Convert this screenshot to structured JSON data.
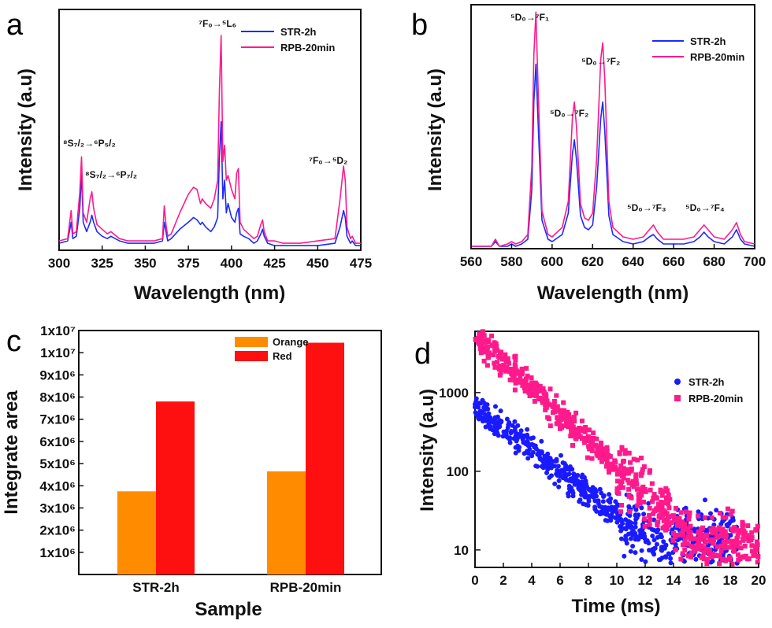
{
  "panels": [
    "a",
    "b",
    "c",
    "d"
  ],
  "chart_data": [
    {
      "panel": "a",
      "type": "line",
      "xlabel": "Wavelength (nm)",
      "ylabel": "Intensity (a.u)",
      "xlim": [
        300,
        475
      ],
      "xticks": [
        300,
        325,
        350,
        375,
        400,
        425,
        450,
        475
      ],
      "ylim": [
        0,
        1
      ],
      "series": [
        {
          "name": "STR-2h",
          "color": "#1a2bff",
          "x": [
            300,
            305,
            307,
            308,
            310,
            312,
            313,
            314,
            316,
            318,
            319,
            320,
            322,
            325,
            328,
            330,
            335,
            340,
            350,
            355,
            360,
            361,
            362,
            363,
            365,
            370,
            375,
            378,
            380,
            382,
            383,
            385,
            388,
            390,
            392,
            393,
            394,
            395,
            396,
            397,
            398,
            400,
            402,
            403,
            404,
            405,
            407,
            410,
            413,
            415,
            417,
            418,
            419,
            421,
            425,
            430,
            440,
            450,
            460,
            463,
            465,
            466,
            467,
            469,
            470,
            472,
            475
          ],
          "y": [
            0.03,
            0.04,
            0.12,
            0.05,
            0.06,
            0.18,
            0.33,
            0.12,
            0.08,
            0.12,
            0.15,
            0.12,
            0.08,
            0.06,
            0.05,
            0.06,
            0.04,
            0.03,
            0.03,
            0.03,
            0.04,
            0.12,
            0.08,
            0.04,
            0.05,
            0.09,
            0.12,
            0.14,
            0.13,
            0.11,
            0.12,
            0.1,
            0.08,
            0.1,
            0.14,
            0.4,
            0.55,
            0.22,
            0.3,
            0.16,
            0.2,
            0.14,
            0.12,
            0.16,
            0.18,
            0.07,
            0.06,
            0.05,
            0.03,
            0.04,
            0.07,
            0.09,
            0.06,
            0.03,
            0.02,
            0.02,
            0.02,
            0.02,
            0.03,
            0.1,
            0.17,
            0.14,
            0.06,
            0.03,
            0.04,
            0.02,
            0.02
          ]
        },
        {
          "name": "RPB-20min",
          "color": "#ff1a8c",
          "x": [
            300,
            305,
            307,
            308,
            310,
            312,
            313,
            314,
            316,
            318,
            319,
            320,
            322,
            325,
            328,
            330,
            335,
            340,
            350,
            355,
            360,
            361,
            362,
            363,
            365,
            370,
            375,
            378,
            380,
            382,
            383,
            385,
            388,
            390,
            392,
            393,
            394,
            395,
            396,
            397,
            398,
            400,
            402,
            403,
            404,
            405,
            407,
            410,
            413,
            415,
            417,
            418,
            419,
            421,
            425,
            430,
            440,
            450,
            460,
            463,
            465,
            466,
            467,
            469,
            470,
            472,
            475
          ],
          "y": [
            0.04,
            0.05,
            0.17,
            0.07,
            0.08,
            0.25,
            0.4,
            0.16,
            0.12,
            0.22,
            0.25,
            0.18,
            0.11,
            0.09,
            0.07,
            0.08,
            0.05,
            0.04,
            0.04,
            0.04,
            0.05,
            0.19,
            0.11,
            0.06,
            0.07,
            0.16,
            0.24,
            0.27,
            0.26,
            0.2,
            0.22,
            0.2,
            0.18,
            0.22,
            0.3,
            0.68,
            0.92,
            0.38,
            0.45,
            0.3,
            0.32,
            0.26,
            0.22,
            0.33,
            0.35,
            0.12,
            0.09,
            0.07,
            0.05,
            0.06,
            0.11,
            0.13,
            0.08,
            0.04,
            0.04,
            0.03,
            0.03,
            0.04,
            0.05,
            0.22,
            0.36,
            0.3,
            0.1,
            0.05,
            0.06,
            0.03,
            0.03
          ]
        }
      ],
      "annotations": [
        {
          "text": "⁷F₀→⁵L₆",
          "x": 394
        },
        {
          "text": "⁸S₇/₂→⁶P₅/₂",
          "x": 313
        },
        {
          "text": "⁸S₇/₂→⁶P₇/₂",
          "x": 319
        },
        {
          "text": "⁷F₀→⁵D₂",
          "x": 465
        }
      ],
      "legend": "top-right"
    },
    {
      "panel": "b",
      "type": "line",
      "xlabel": "Wavelength (nm)",
      "ylabel": "Intensity (a.u)",
      "xlim": [
        560,
        700
      ],
      "xticks": [
        560,
        580,
        600,
        620,
        640,
        660,
        680,
        700
      ],
      "ylim": [
        0,
        1
      ],
      "series": [
        {
          "name": "STR-2h",
          "color": "#1a2bff",
          "x": [
            560,
            570,
            572,
            574,
            578,
            580,
            582,
            585,
            588,
            590,
            591,
            592,
            593,
            595,
            598,
            600,
            605,
            608,
            610,
            611,
            612,
            614,
            616,
            618,
            620,
            622,
            624,
            625,
            626,
            628,
            630,
            635,
            640,
            645,
            648,
            650,
            652,
            655,
            660,
            665,
            670,
            673,
            675,
            677,
            680,
            685,
            689,
            691,
            693,
            695,
            700
          ],
          "y": [
            0.01,
            0.01,
            0.03,
            0.01,
            0.01,
            0.02,
            0.01,
            0.02,
            0.04,
            0.25,
            0.62,
            0.78,
            0.55,
            0.12,
            0.04,
            0.03,
            0.06,
            0.15,
            0.4,
            0.46,
            0.38,
            0.14,
            0.09,
            0.08,
            0.1,
            0.26,
            0.55,
            0.62,
            0.5,
            0.14,
            0.06,
            0.03,
            0.02,
            0.03,
            0.05,
            0.06,
            0.04,
            0.02,
            0.02,
            0.02,
            0.03,
            0.05,
            0.07,
            0.05,
            0.03,
            0.02,
            0.05,
            0.08,
            0.04,
            0.02,
            0.01
          ]
        },
        {
          "name": "RPB-20min",
          "color": "#ff1a8c",
          "x": [
            560,
            570,
            572,
            574,
            578,
            580,
            582,
            585,
            588,
            590,
            591,
            592,
            593,
            595,
            598,
            600,
            605,
            608,
            610,
            611,
            612,
            614,
            616,
            618,
            620,
            622,
            624,
            625,
            626,
            628,
            630,
            635,
            640,
            645,
            648,
            650,
            652,
            655,
            660,
            665,
            670,
            673,
            675,
            677,
            680,
            685,
            689,
            691,
            693,
            695,
            700
          ],
          "y": [
            0.01,
            0.01,
            0.04,
            0.01,
            0.02,
            0.03,
            0.02,
            0.03,
            0.06,
            0.35,
            0.82,
            1.0,
            0.7,
            0.16,
            0.06,
            0.05,
            0.09,
            0.2,
            0.55,
            0.62,
            0.52,
            0.19,
            0.13,
            0.12,
            0.15,
            0.38,
            0.8,
            0.87,
            0.72,
            0.2,
            0.09,
            0.05,
            0.04,
            0.05,
            0.08,
            0.1,
            0.07,
            0.04,
            0.04,
            0.04,
            0.05,
            0.08,
            0.1,
            0.08,
            0.05,
            0.04,
            0.08,
            0.11,
            0.06,
            0.03,
            0.02
          ]
        }
      ],
      "annotations": [
        {
          "text": "⁵D₀→⁷F₁",
          "x": 592
        },
        {
          "text": "⁵D₀→⁷F₂",
          "x": 610
        },
        {
          "text": "⁵D₀→⁷F₂",
          "x": 625
        },
        {
          "text": "⁵D₀→⁷F₃",
          "x": 650
        },
        {
          "text": "⁵D₀→⁷F₄",
          "x": 675
        }
      ],
      "legend": "top-right"
    },
    {
      "panel": "c",
      "type": "bar",
      "xlabel": "Sample",
      "ylabel": "Integrate area",
      "categories": [
        "STR-2h",
        "RPB-20min"
      ],
      "series": [
        {
          "name": "Orange",
          "color": "#ff8c00",
          "values": [
            3750000,
            4650000
          ]
        },
        {
          "name": "Red",
          "color": "#ff1010",
          "values": [
            7800000,
            10450000
          ]
        }
      ],
      "ylim": [
        0,
        11000000
      ],
      "yticks": [
        1000000,
        2000000,
        3000000,
        4000000,
        5000000,
        6000000,
        7000000,
        8000000,
        9000000,
        10000000,
        11000000
      ],
      "ytick_labels": [
        "1x10⁶",
        "2x10⁶",
        "3x10⁶",
        "4x10⁶",
        "5x10⁶",
        "6x10⁶",
        "7x10⁶",
        "8x10⁶",
        "9x10⁶",
        "1x10⁷",
        "1x10⁷"
      ],
      "legend": "top-center"
    },
    {
      "panel": "d",
      "type": "scatter",
      "xlabel": "Time (ms)",
      "ylabel": "Intensity (a.u)",
      "xlim": [
        0,
        20
      ],
      "xticks": [
        0,
        2,
        4,
        6,
        8,
        10,
        12,
        14,
        16,
        18,
        20
      ],
      "yscale": "log",
      "ylim": [
        6,
        6000
      ],
      "yticks": [
        10,
        100,
        1000
      ],
      "series": [
        {
          "name": "STR-2h",
          "color": "#1a1aff",
          "marker": "circle",
          "A": 650,
          "tau": 3.2,
          "noise_log": 0.18,
          "floor": 7,
          "x_end": 18.5
        },
        {
          "name": "RPB-20min",
          "color": "#ff1a8c",
          "marker": "square",
          "A": 5200,
          "tau": 2.6,
          "noise_log": 0.18,
          "floor": 7,
          "x_end": 20
        }
      ],
      "legend": "top-right"
    }
  ]
}
